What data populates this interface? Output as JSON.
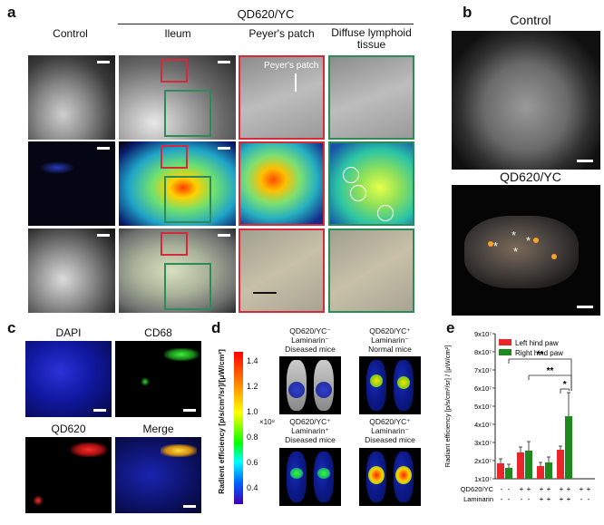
{
  "panel_labels": {
    "a": "a",
    "b": "b",
    "c": "c",
    "d": "d",
    "e": "e"
  },
  "panel_a": {
    "group_title": "QD620/YC",
    "col_headers": [
      "Control",
      "Ileum",
      "Peyer's patch",
      "Diffuse lymphoid\ntissue"
    ],
    "annotation": "Peyer's patch"
  },
  "panel_b": {
    "control_label": "Control",
    "treated_label": "QD620/YC"
  },
  "panel_c": {
    "labels": {
      "dapi": "DAPI",
      "cd68": "CD68",
      "qd620": "QD620",
      "merge": "Merge"
    },
    "colors": {
      "dapi": "#2233dd",
      "cd68": "#1faa3a",
      "qd620": "#dd2222",
      "merge": "#111111"
    }
  },
  "panel_d": {
    "colorbar_label": "Radient efficiency [p/s/cm²/sr]/[μW/cm²]",
    "colorbar_ticks": [
      "1.4",
      "1.2",
      "1.0",
      "0.8",
      "0.6",
      "0.4"
    ],
    "colorbar_exp": "×10⁸",
    "titles": [
      "QD620/YC⁻\nLaminarin⁻\nDiseased mice",
      "QD620/YC⁺\nLaminarin⁻\nNormal mice",
      "QD620/YC⁺\nLaminarin⁺\nDiseased mice",
      "QD620/YC⁺\nLaminarin⁻\nDiseased mice"
    ]
  },
  "chart_data": {
    "type": "bar",
    "ylabel": "Radiant efficiency [p/s/cm²/sr] / [μW/cm²]",
    "ylim": [
      1,
      9
    ],
    "y_ticks": [
      "1x10⁷",
      "2x10⁷",
      "3x10⁷",
      "4x10⁷",
      "5x10⁷",
      "6x10⁷",
      "7x10⁷",
      "8x10⁷",
      "9x10⁷"
    ],
    "groups": 5,
    "series": [
      {
        "name": "Left hind paw",
        "color": "#e8262b",
        "values": [
          1.85,
          2.45,
          1.7,
          2.6,
          null
        ],
        "errors": [
          0.25,
          0.3,
          0.2,
          0.2,
          null
        ]
      },
      {
        "name": "Right hind paw",
        "color": "#1e8a1e",
        "values": [
          1.6,
          2.55,
          1.9,
          4.45,
          null
        ],
        "errors": [
          0.2,
          0.5,
          0.3,
          1.3,
          null
        ]
      }
    ],
    "row_labels": [
      "QD620/YC",
      "Laminarin"
    ],
    "row_values": [
      [
        "-",
        "+",
        "+",
        "+",
        "+"
      ],
      [
        "-",
        "-",
        "+",
        "+",
        "-"
      ]
    ],
    "significance": [
      "**",
      "**",
      "*"
    ],
    "legend_position": "top-left"
  }
}
